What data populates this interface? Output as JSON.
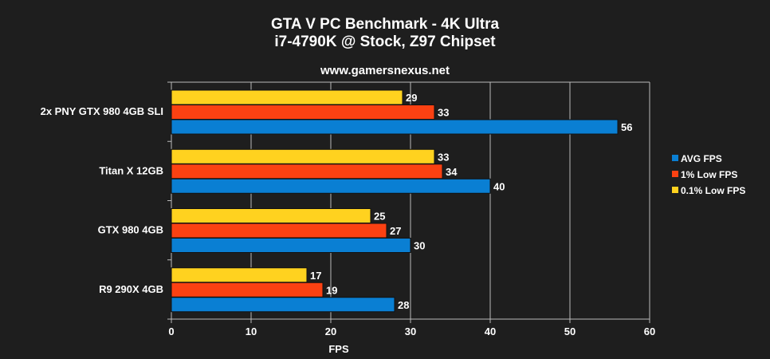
{
  "chart_data": {
    "type": "bar",
    "orientation": "horizontal",
    "title": "GTA V PC Benchmark - 4K Ultra",
    "subtitle": "i7-4790K @ Stock, Z97 Chipset",
    "watermark": "www.gamersnexus.net",
    "xlabel": "FPS",
    "ylabel": "",
    "xlim": [
      0,
      60
    ],
    "xticks": [
      0,
      10,
      20,
      30,
      40,
      50,
      60
    ],
    "grid": true,
    "legend_position": "right",
    "categories": [
      "2x PNY GTX 980 4GB SLI",
      "Titan X 12GB",
      "GTX 980 4GB",
      "R9 290X 4GB"
    ],
    "series": [
      {
        "name": "AVG FPS",
        "color": "#0a7fd3",
        "values": [
          56,
          40,
          30,
          28
        ]
      },
      {
        "name": "1% Low FPS",
        "color": "#fb4112",
        "values": [
          33,
          34,
          27,
          19
        ]
      },
      {
        "name": "0.1% Low FPS",
        "color": "#ffd21f",
        "values": [
          29,
          33,
          25,
          17
        ]
      }
    ]
  }
}
